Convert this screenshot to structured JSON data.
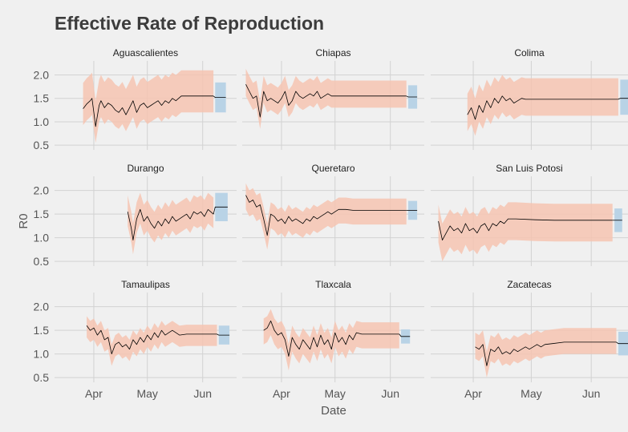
{
  "chart_data": {
    "type": "line",
    "title": "Effective Rate of Reproduction",
    "xlabel": "Date",
    "ylabel": "R0",
    "ylim": [
      0.4,
      2.3
    ],
    "yticks": [
      0.5,
      1.0,
      1.5,
      2.0
    ],
    "ytick_labels": [
      "0.5",
      "1.0",
      "1.5",
      "2.0"
    ],
    "x_range": [
      "2020-03-10",
      "2020-06-20"
    ],
    "xticks": [
      "2020-04-01",
      "2020-05-01",
      "2020-06-01"
    ],
    "xtick_labels": [
      "Apr",
      "May",
      "Jun"
    ],
    "grid": true,
    "colors": {
      "background": "#f0f0f0",
      "estimate_band": "#f6c4b2",
      "forecast_band": "#b9d3e6",
      "line": "#000000",
      "grid": "#d2d2d2"
    },
    "panels": [
      {
        "name": "Aguascalientes",
        "start": "2020-03-26",
        "end": "2020-06-07",
        "forecast_end": "2020-06-14",
        "pts": [
          [
            0,
            1.28
          ],
          [
            2,
            1.38
          ],
          [
            4,
            1.45
          ],
          [
            5,
            1.5
          ],
          [
            6,
            1.2
          ],
          [
            7,
            0.9
          ],
          [
            9,
            1.35
          ],
          [
            10,
            1.45
          ],
          [
            12,
            1.3
          ],
          [
            14,
            1.4
          ],
          [
            16,
            1.35
          ],
          [
            18,
            1.25
          ],
          [
            20,
            1.2
          ],
          [
            22,
            1.3
          ],
          [
            24,
            1.15
          ],
          [
            26,
            1.3
          ],
          [
            28,
            1.45
          ],
          [
            30,
            1.2
          ],
          [
            32,
            1.35
          ],
          [
            34,
            1.4
          ],
          [
            36,
            1.3
          ],
          [
            38,
            1.35
          ],
          [
            40,
            1.4
          ],
          [
            42,
            1.45
          ],
          [
            44,
            1.35
          ],
          [
            46,
            1.45
          ],
          [
            48,
            1.4
          ],
          [
            50,
            1.5
          ],
          [
            52,
            1.45
          ],
          [
            55,
            1.55
          ],
          [
            58,
            1.55
          ],
          [
            62,
            1.55
          ],
          [
            66,
            1.55
          ],
          [
            70,
            1.55
          ],
          [
            73,
            1.55
          ]
        ],
        "forecast": 1.52,
        "band_upper": 0.55,
        "band_lower": 0.35,
        "fc_upper": 0.32,
        "fc_lower": 0.32
      },
      {
        "name": "Chiapas",
        "start": "2020-03-12",
        "end": "2020-06-10",
        "forecast_end": "2020-06-16",
        "pts": [
          [
            0,
            1.8
          ],
          [
            2,
            1.65
          ],
          [
            4,
            1.5
          ],
          [
            6,
            1.55
          ],
          [
            8,
            1.1
          ],
          [
            10,
            1.65
          ],
          [
            12,
            1.45
          ],
          [
            14,
            1.5
          ],
          [
            16,
            1.45
          ],
          [
            18,
            1.4
          ],
          [
            20,
            1.5
          ],
          [
            22,
            1.65
          ],
          [
            24,
            1.35
          ],
          [
            26,
            1.45
          ],
          [
            28,
            1.65
          ],
          [
            30,
            1.55
          ],
          [
            32,
            1.5
          ],
          [
            34,
            1.55
          ],
          [
            36,
            1.6
          ],
          [
            38,
            1.55
          ],
          [
            40,
            1.65
          ],
          [
            42,
            1.5
          ],
          [
            44,
            1.55
          ],
          [
            46,
            1.6
          ],
          [
            48,
            1.55
          ],
          [
            52,
            1.55
          ],
          [
            56,
            1.55
          ],
          [
            60,
            1.55
          ],
          [
            70,
            1.55
          ],
          [
            80,
            1.55
          ],
          [
            90,
            1.55
          ]
        ],
        "forecast": 1.53,
        "band_upper": 0.33,
        "band_lower": 0.25,
        "fc_upper": 0.25,
        "fc_lower": 0.25
      },
      {
        "name": "Colima",
        "start": "2020-03-29",
        "end": "2020-06-15",
        "forecast_end": "2020-06-20",
        "pts": [
          [
            0,
            1.15
          ],
          [
            2,
            1.3
          ],
          [
            4,
            1.05
          ],
          [
            6,
            1.35
          ],
          [
            8,
            1.2
          ],
          [
            10,
            1.45
          ],
          [
            12,
            1.3
          ],
          [
            14,
            1.5
          ],
          [
            16,
            1.4
          ],
          [
            18,
            1.55
          ],
          [
            20,
            1.45
          ],
          [
            22,
            1.5
          ],
          [
            24,
            1.4
          ],
          [
            26,
            1.45
          ],
          [
            28,
            1.5
          ],
          [
            30,
            1.48
          ],
          [
            36,
            1.48
          ],
          [
            44,
            1.48
          ],
          [
            54,
            1.48
          ],
          [
            64,
            1.48
          ],
          [
            70,
            1.48
          ],
          [
            78,
            1.48
          ]
        ],
        "forecast": 1.5,
        "band_upper": 0.45,
        "band_lower": 0.35,
        "fc_upper": 0.4,
        "fc_lower": 0.35
      },
      {
        "name": "Durango",
        "start": "2020-04-20",
        "end": "2020-06-07",
        "forecast_end": "2020-06-15",
        "pts": [
          [
            0,
            1.55
          ],
          [
            2,
            1.2
          ],
          [
            3,
            0.95
          ],
          [
            5,
            1.4
          ],
          [
            7,
            1.6
          ],
          [
            9,
            1.35
          ],
          [
            11,
            1.45
          ],
          [
            13,
            1.3
          ],
          [
            15,
            1.2
          ],
          [
            17,
            1.35
          ],
          [
            19,
            1.25
          ],
          [
            21,
            1.4
          ],
          [
            23,
            1.3
          ],
          [
            25,
            1.45
          ],
          [
            27,
            1.35
          ],
          [
            29,
            1.4
          ],
          [
            31,
            1.45
          ],
          [
            33,
            1.5
          ],
          [
            35,
            1.4
          ],
          [
            37,
            1.55
          ],
          [
            39,
            1.5
          ],
          [
            41,
            1.55
          ],
          [
            43,
            1.45
          ],
          [
            45,
            1.6
          ],
          [
            48,
            1.5
          ]
        ],
        "forecast": 1.65,
        "band_upper": 0.35,
        "band_lower": 0.3,
        "fc_upper": 0.3,
        "fc_lower": 0.3
      },
      {
        "name": "Queretaro",
        "start": "2020-03-12",
        "end": "2020-06-10",
        "forecast_end": "2020-06-16",
        "pts": [
          [
            0,
            1.9
          ],
          [
            2,
            1.75
          ],
          [
            4,
            1.8
          ],
          [
            6,
            1.65
          ],
          [
            8,
            1.7
          ],
          [
            10,
            1.4
          ],
          [
            12,
            1.05
          ],
          [
            14,
            1.5
          ],
          [
            16,
            1.45
          ],
          [
            18,
            1.35
          ],
          [
            20,
            1.4
          ],
          [
            22,
            1.3
          ],
          [
            24,
            1.45
          ],
          [
            26,
            1.35
          ],
          [
            28,
            1.4
          ],
          [
            30,
            1.35
          ],
          [
            32,
            1.3
          ],
          [
            34,
            1.4
          ],
          [
            36,
            1.35
          ],
          [
            38,
            1.45
          ],
          [
            40,
            1.4
          ],
          [
            42,
            1.45
          ],
          [
            44,
            1.5
          ],
          [
            46,
            1.55
          ],
          [
            48,
            1.5
          ],
          [
            50,
            1.55
          ],
          [
            52,
            1.6
          ],
          [
            56,
            1.6
          ],
          [
            60,
            1.58
          ],
          [
            70,
            1.58
          ],
          [
            80,
            1.58
          ],
          [
            90,
            1.58
          ]
        ],
        "forecast": 1.58,
        "band_upper": 0.25,
        "band_lower": 0.3,
        "fc_upper": 0.2,
        "fc_lower": 0.2
      },
      {
        "name": "San Luis Potosi",
        "start": "2020-03-14",
        "end": "2020-06-12",
        "forecast_end": "2020-06-17",
        "pts": [
          [
            0,
            1.35
          ],
          [
            2,
            0.95
          ],
          [
            4,
            1.1
          ],
          [
            6,
            1.25
          ],
          [
            8,
            1.15
          ],
          [
            10,
            1.2
          ],
          [
            12,
            1.1
          ],
          [
            14,
            1.3
          ],
          [
            16,
            1.15
          ],
          [
            18,
            1.2
          ],
          [
            20,
            1.1
          ],
          [
            22,
            1.25
          ],
          [
            24,
            1.3
          ],
          [
            26,
            1.15
          ],
          [
            28,
            1.3
          ],
          [
            30,
            1.25
          ],
          [
            32,
            1.35
          ],
          [
            34,
            1.3
          ],
          [
            36,
            1.4
          ],
          [
            40,
            1.4
          ],
          [
            50,
            1.38
          ],
          [
            60,
            1.37
          ],
          [
            70,
            1.37
          ],
          [
            80,
            1.37
          ],
          [
            90,
            1.37
          ]
        ],
        "forecast": 1.37,
        "band_upper": 0.35,
        "band_lower": 0.45,
        "fc_upper": 0.25,
        "fc_lower": 0.25
      },
      {
        "name": "Tamaulipas",
        "start": "2020-03-28",
        "end": "2020-06-09",
        "forecast_end": "2020-06-16",
        "pts": [
          [
            0,
            1.6
          ],
          [
            2,
            1.5
          ],
          [
            4,
            1.55
          ],
          [
            6,
            1.4
          ],
          [
            8,
            1.5
          ],
          [
            10,
            1.3
          ],
          [
            12,
            1.35
          ],
          [
            14,
            1.0
          ],
          [
            16,
            1.2
          ],
          [
            18,
            1.25
          ],
          [
            20,
            1.15
          ],
          [
            22,
            1.2
          ],
          [
            24,
            1.1
          ],
          [
            26,
            1.3
          ],
          [
            28,
            1.2
          ],
          [
            30,
            1.35
          ],
          [
            32,
            1.25
          ],
          [
            34,
            1.4
          ],
          [
            36,
            1.3
          ],
          [
            38,
            1.45
          ],
          [
            40,
            1.35
          ],
          [
            42,
            1.5
          ],
          [
            44,
            1.4
          ],
          [
            46,
            1.45
          ],
          [
            48,
            1.5
          ],
          [
            50,
            1.45
          ],
          [
            52,
            1.4
          ],
          [
            56,
            1.42
          ],
          [
            60,
            1.42
          ],
          [
            66,
            1.42
          ],
          [
            73,
            1.42
          ]
        ],
        "forecast": 1.4,
        "band_upper": 0.2,
        "band_lower": 0.25,
        "fc_upper": 0.2,
        "fc_lower": 0.2
      },
      {
        "name": "Tlaxcala",
        "start": "2020-03-22",
        "end": "2020-06-06",
        "forecast_end": "2020-06-12",
        "pts": [
          [
            0,
            1.5
          ],
          [
            2,
            1.55
          ],
          [
            4,
            1.7
          ],
          [
            6,
            1.5
          ],
          [
            8,
            1.4
          ],
          [
            10,
            1.45
          ],
          [
            12,
            1.3
          ],
          [
            14,
            0.95
          ],
          [
            16,
            1.35
          ],
          [
            18,
            1.2
          ],
          [
            20,
            1.1
          ],
          [
            22,
            1.3
          ],
          [
            24,
            1.2
          ],
          [
            26,
            1.1
          ],
          [
            28,
            1.35
          ],
          [
            30,
            1.15
          ],
          [
            32,
            1.4
          ],
          [
            34,
            1.2
          ],
          [
            36,
            1.3
          ],
          [
            38,
            1.1
          ],
          [
            40,
            1.45
          ],
          [
            42,
            1.25
          ],
          [
            44,
            1.35
          ],
          [
            46,
            1.2
          ],
          [
            48,
            1.4
          ],
          [
            50,
            1.3
          ],
          [
            52,
            1.45
          ],
          [
            55,
            1.42
          ],
          [
            60,
            1.42
          ],
          [
            66,
            1.42
          ],
          [
            76,
            1.42
          ]
        ],
        "forecast": 1.37,
        "band_upper": 0.25,
        "band_lower": 0.3,
        "fc_upper": 0.15,
        "fc_lower": 0.15
      },
      {
        "name": "Zacatecas",
        "start": "2020-04-02",
        "end": "2020-06-14",
        "forecast_end": "2020-06-20",
        "pts": [
          [
            0,
            1.15
          ],
          [
            2,
            1.1
          ],
          [
            4,
            1.2
          ],
          [
            6,
            0.75
          ],
          [
            8,
            1.1
          ],
          [
            10,
            1.05
          ],
          [
            12,
            1.15
          ],
          [
            14,
            1.0
          ],
          [
            16,
            1.05
          ],
          [
            18,
            1.0
          ],
          [
            20,
            1.1
          ],
          [
            22,
            1.05
          ],
          [
            24,
            1.1
          ],
          [
            26,
            1.15
          ],
          [
            28,
            1.1
          ],
          [
            30,
            1.15
          ],
          [
            32,
            1.2
          ],
          [
            34,
            1.15
          ],
          [
            36,
            1.2
          ],
          [
            40,
            1.22
          ],
          [
            46,
            1.25
          ],
          [
            52,
            1.25
          ],
          [
            60,
            1.25
          ],
          [
            66,
            1.25
          ],
          [
            73,
            1.25
          ]
        ],
        "forecast": 1.22,
        "band_upper": 0.3,
        "band_lower": 0.25,
        "fc_upper": 0.25,
        "fc_lower": 0.25
      }
    ]
  }
}
